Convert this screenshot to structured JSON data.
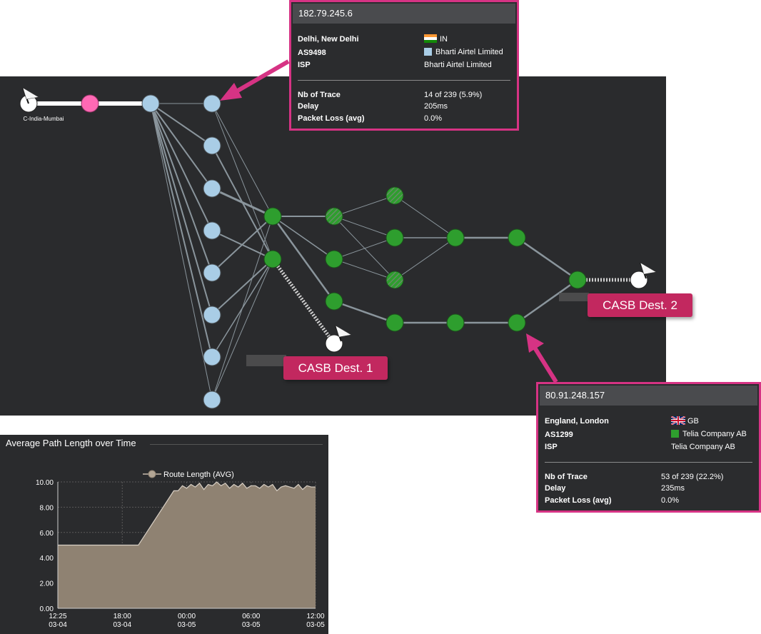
{
  "graph": {
    "source_label": "C-India-Mumbai",
    "colors": {
      "panel": "#2a2b2d",
      "source_node": "#ff69b4",
      "hop_blue": "#a9cde6",
      "hop_green": "#2e9e2e",
      "link": "#8a959c",
      "callout": "#c2285f",
      "tooltip_border": "#d63384"
    }
  },
  "tooltip_top": {
    "ip": "182.79.245.6",
    "location_label": "Delhi, New Delhi",
    "country_code": "IN",
    "flag_icon": "india-flag-icon",
    "asn_label": "AS9498",
    "asn_name": "Bharti Airtel Limited",
    "asn_color": "#a9cde6",
    "isp_label": "ISP",
    "isp_value": "Bharti Airtel Limited",
    "trace_label": "Nb of Trace",
    "trace_value": "14 of 239 (5.9%)",
    "delay_label": "Delay",
    "delay_value": "205ms",
    "loss_label": "Packet Loss (avg)",
    "loss_value": "0.0%"
  },
  "tooltip_bottom": {
    "ip": "80.91.248.157",
    "location_label": "England, London",
    "country_code": "GB",
    "flag_icon": "uk-flag-icon",
    "asn_label": "AS1299",
    "asn_name": "Telia Company AB",
    "asn_color": "#2e9e2e",
    "isp_label": "ISP",
    "isp_value": "Telia Company AB",
    "trace_label": "Nb of Trace",
    "trace_value": "53 of 239 (22.2%)",
    "delay_label": "Delay",
    "delay_value": "235ms",
    "loss_label": "Packet Loss (avg)",
    "loss_value": "0.0%"
  },
  "callouts": {
    "dest1": "CASB Dest. 1",
    "dest2": "CASB Dest. 2"
  },
  "chart_title": "Average Path Length over Time",
  "chart_data": {
    "type": "area",
    "title": "Average Path Length over Time",
    "legend": "Route Length (AVG)",
    "legend_position": "top-center",
    "ylim": [
      0,
      10
    ],
    "yticks": [
      "0.00",
      "2.00",
      "4.00",
      "6.00",
      "8.00",
      "10.00"
    ],
    "xticks": [
      {
        "time": "12:25",
        "date": "03-04"
      },
      {
        "time": "18:00",
        "date": "03-04"
      },
      {
        "time": "00:00",
        "date": "03-05"
      },
      {
        "time": "06:00",
        "date": "03-05"
      },
      {
        "time": "12:00",
        "date": "03-05"
      }
    ],
    "grid": true,
    "series": [
      {
        "name": "Route Length (AVG)",
        "color": "#8f8272",
        "x_hours": [
          0,
          7.5,
          10.8,
          11.2,
          11.6,
          12.0,
          12.4,
          12.8,
          13.2,
          13.6,
          14.0,
          14.4,
          14.8,
          15.2,
          15.6,
          16.0,
          16.4,
          16.8,
          17.2,
          17.6,
          18.0,
          18.4,
          18.8,
          19.2,
          19.6,
          20.0,
          20.4,
          20.8,
          21.2,
          21.6,
          22.0,
          22.4,
          22.8,
          23.2,
          23.6,
          24.0,
          24.4
        ],
        "values": [
          5.0,
          5.0,
          9.3,
          9.3,
          9.7,
          9.5,
          9.8,
          9.6,
          9.9,
          9.4,
          9.8,
          9.7,
          10.0,
          9.7,
          9.9,
          9.5,
          9.8,
          9.6,
          9.9,
          9.5,
          9.7,
          9.7,
          9.5,
          9.8,
          9.6,
          9.8,
          9.3,
          9.6,
          9.7,
          9.6,
          9.5,
          9.8,
          9.4,
          9.7,
          9.6,
          9.6,
          9.6
        ]
      }
    ]
  }
}
